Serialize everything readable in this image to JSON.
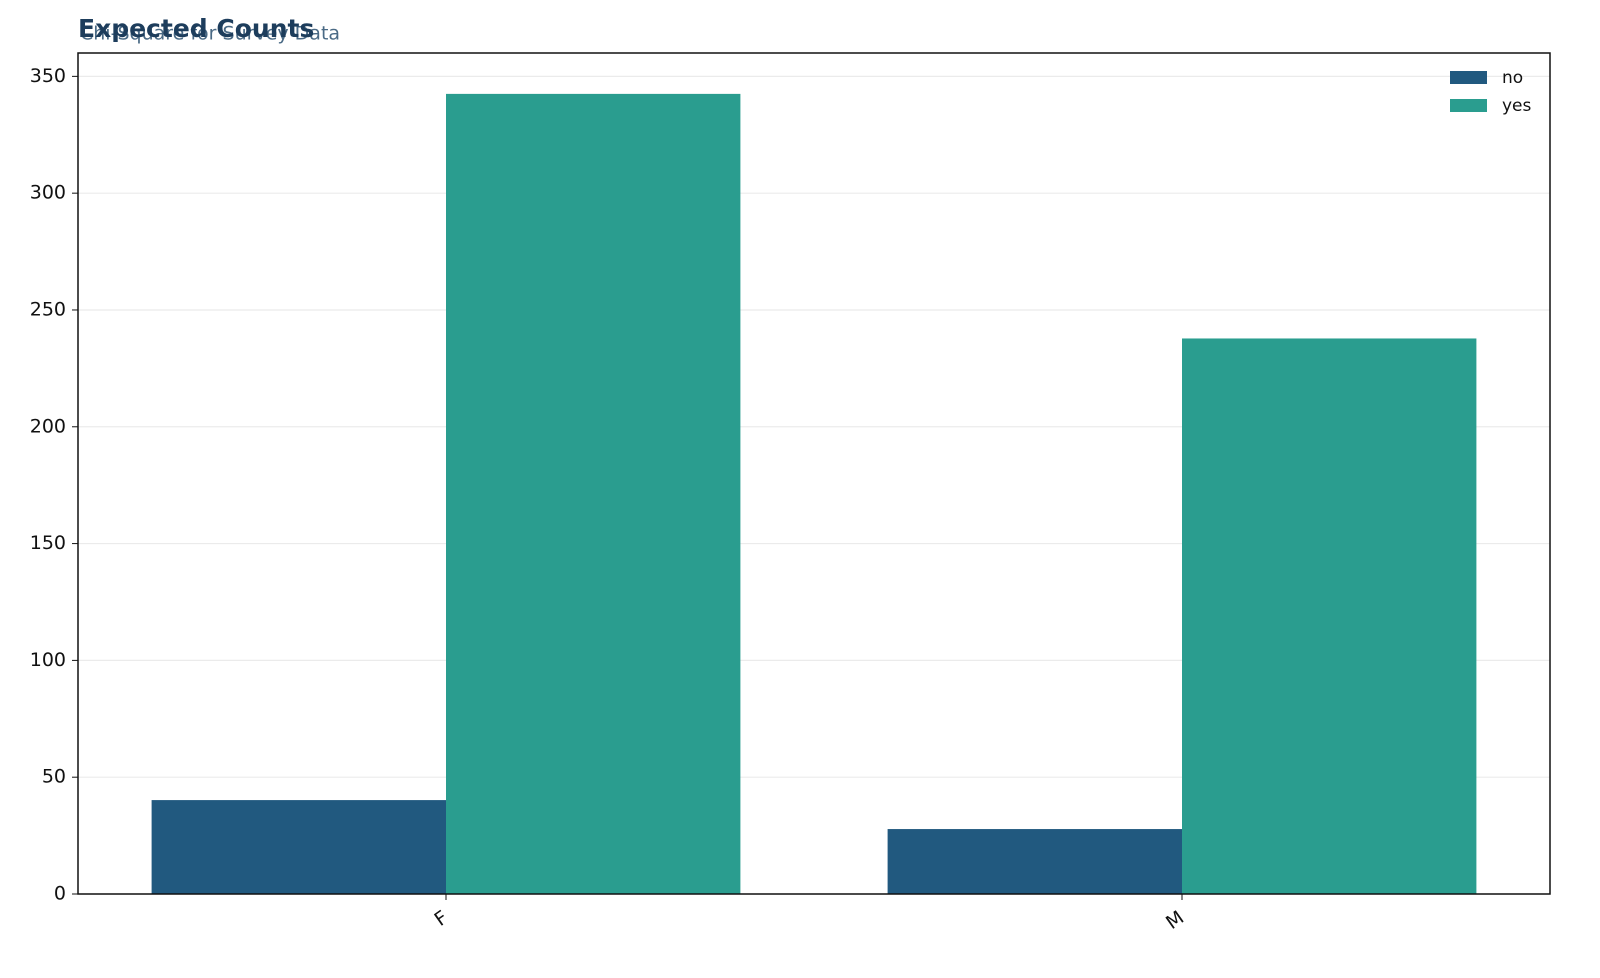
{
  "chart_data": {
    "type": "bar",
    "title": "Expected Counts",
    "subtitle": "Chi-Square for Survey Data",
    "categories": [
      "F",
      "M"
    ],
    "series": [
      {
        "name": "no",
        "color": "#21597f",
        "values": [
          40.2,
          27.8
        ]
      },
      {
        "name": "yes",
        "color": "#2a9d8f",
        "values": [
          342.5,
          237.8
        ]
      }
    ],
    "ylim": [
      0,
      360
    ],
    "yticks": [
      0,
      50,
      100,
      150,
      200,
      250,
      300,
      350
    ],
    "grid": true,
    "legend": "upper right"
  }
}
